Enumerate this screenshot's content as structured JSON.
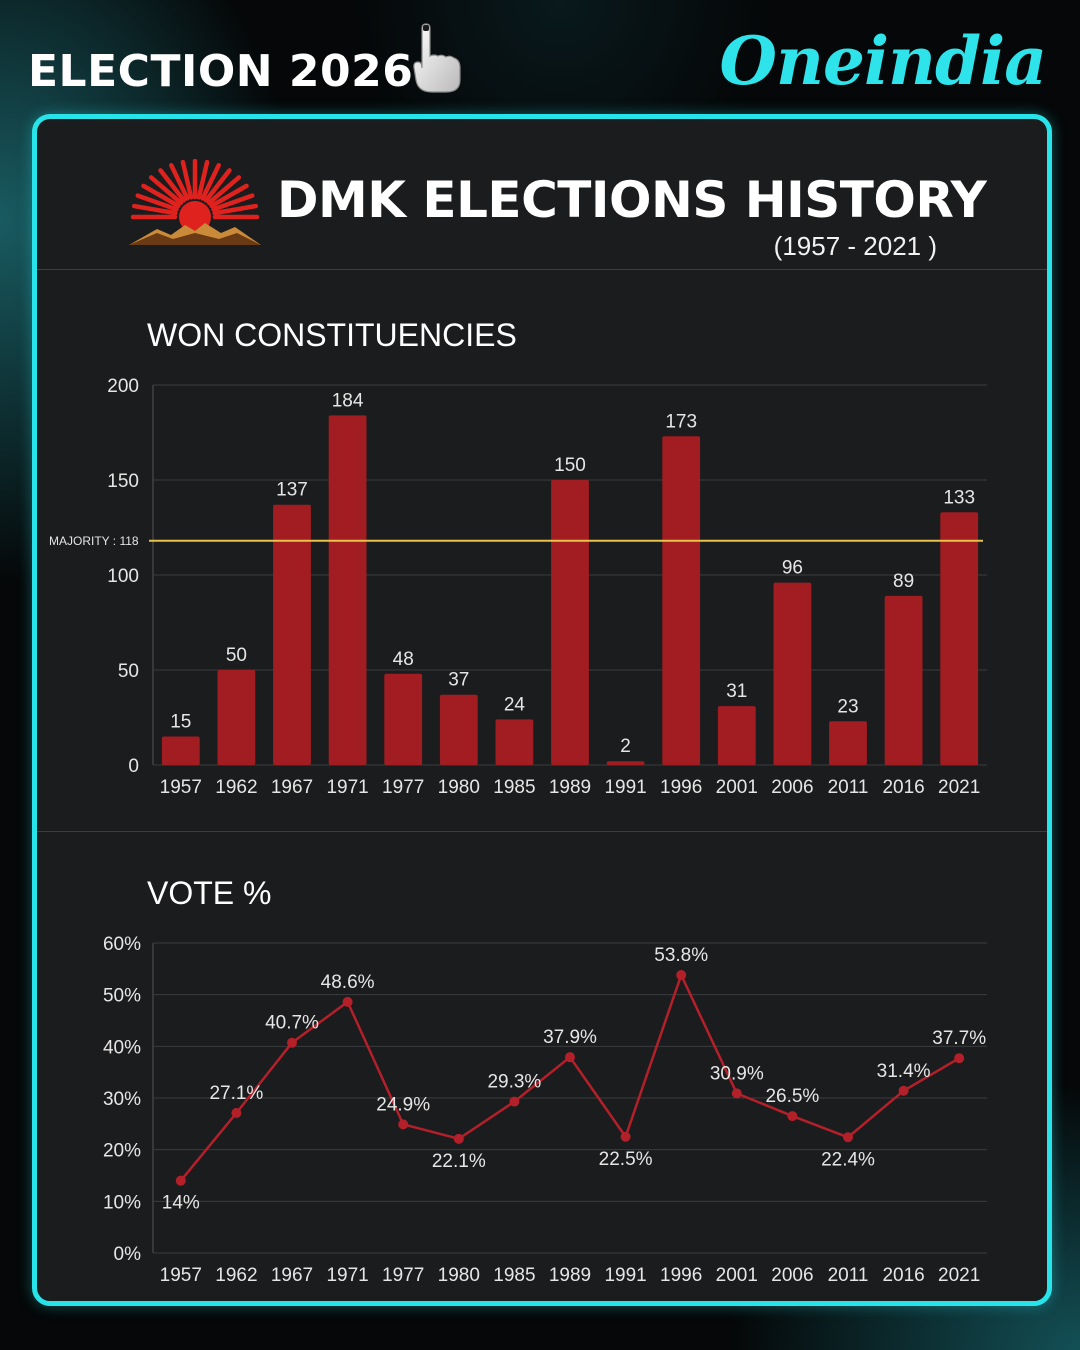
{
  "header": {
    "brand": "ELECTION 2026",
    "logo": "Oneindia",
    "brand_icon": "voting-finger-icon"
  },
  "colors": {
    "accent": "#27e4ea",
    "bar": "#a11d22",
    "line": "#b4202a",
    "majority_line": "#e8c24a",
    "card_bg": "#1b1c1e"
  },
  "title": {
    "main": "DMK ELECTIONS HISTORY",
    "sub": "(1957 - 2021 )",
    "emblem": "rising-sun-emblem"
  },
  "sections": {
    "won": "WON CONSTITUENCIES",
    "vote": "VOTE %"
  },
  "chart_data": [
    {
      "type": "bar",
      "title": "WON CONSTITUENCIES",
      "categories": [
        "1957",
        "1962",
        "1967",
        "1971",
        "1977",
        "1980",
        "1985",
        "1989",
        "1991",
        "1996",
        "2001",
        "2006",
        "2011",
        "2016",
        "2021"
      ],
      "values": [
        15,
        50,
        137,
        184,
        48,
        37,
        24,
        150,
        2,
        173,
        31,
        96,
        23,
        89,
        133
      ],
      "data_labels": [
        "15",
        "50",
        "137",
        "184",
        "48",
        "37",
        "24",
        "150",
        "2",
        "173",
        "31",
        "96",
        "23",
        "89",
        "133"
      ],
      "ylim": [
        0,
        200
      ],
      "yticks": [
        0,
        50,
        100,
        150,
        200
      ],
      "ytick_labels": [
        "0",
        "50",
        "100",
        "150",
        "200"
      ],
      "reference_line": {
        "value": 118,
        "label": "MAJORITY : 118"
      },
      "grid": true
    },
    {
      "type": "line",
      "title": "VOTE %",
      "categories": [
        "1957",
        "1962",
        "1967",
        "1971",
        "1977",
        "1980",
        "1985",
        "1989",
        "1991",
        "1996",
        "2001",
        "2006",
        "2011",
        "2016",
        "2021"
      ],
      "values": [
        14,
        27.1,
        40.7,
        48.6,
        24.9,
        22.1,
        29.3,
        37.9,
        22.5,
        53.8,
        30.9,
        26.5,
        22.4,
        31.4,
        37.7
      ],
      "data_labels": [
        "14%",
        "27.1%",
        "40.7%",
        "48.6%",
        "24.9%",
        "22.1%",
        "29.3%",
        "37.9%",
        "22.5%",
        "53.8%",
        "30.9%",
        "26.5%",
        "22.4%",
        "31.4%",
        "37.7%"
      ],
      "ylim": [
        0,
        60
      ],
      "yticks": [
        0,
        10,
        20,
        30,
        40,
        50,
        60
      ],
      "ytick_labels": [
        "0%",
        "10%",
        "20%",
        "30%",
        "40%",
        "50%",
        "60%"
      ],
      "grid": true
    }
  ]
}
